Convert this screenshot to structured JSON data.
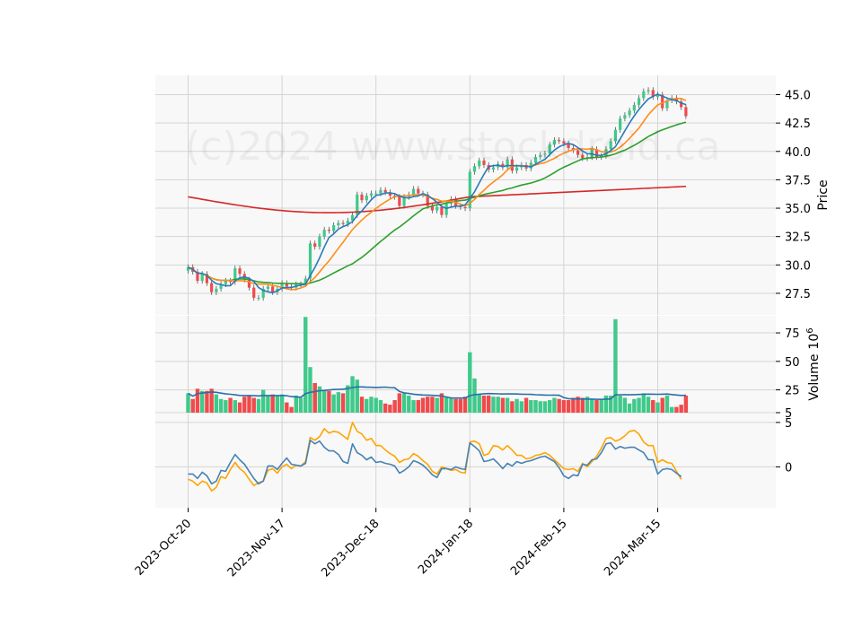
{
  "watermark": "(c)2024 www.stockdroid.ca",
  "colors": {
    "up": "#3fc98a",
    "down": "#f04a4a",
    "panel_bg": "#f8f8f8",
    "grid": "#d4d4d4",
    "ma_short": "#2a7ab8",
    "ma_medium": "#ff8c1a",
    "ma_long": "#2ca02c",
    "ma_xlong": "#d62728",
    "volume_ma": "#2a6fa8",
    "osc_fast": "#4682b4",
    "osc_slow": "#ffa500"
  },
  "chart_data": [
    {
      "type": "candlestick",
      "panel": "price",
      "ylabel": "Price",
      "ylim": [
        25.6,
        46.7
      ],
      "yticks": [
        27.5,
        30.0,
        32.5,
        35.0,
        37.5,
        40.0,
        42.5,
        45.0
      ],
      "ytick_labels": [
        "27.5",
        "30.0",
        "32.5",
        "35.0",
        "37.5",
        "40.0",
        "42.5",
        "45.0"
      ],
      "xticks": [
        0,
        20,
        40,
        60,
        80,
        100
      ],
      "xtick_labels": [
        "2023-Oct-20",
        "2023-Nov-17",
        "2023-Dec-18",
        "2024-Jan-18",
        "2024-Feb-15",
        "2024-Mar-15"
      ],
      "grid": true,
      "closes": [
        29.8,
        29.4,
        28.6,
        29.2,
        28.4,
        27.6,
        27.9,
        28.3,
        28.6,
        28.5,
        29.7,
        29.2,
        28.7,
        28.0,
        27.1,
        27.1,
        27.9,
        28.1,
        27.6,
        27.9,
        28.4,
        28.1,
        28.0,
        28.3,
        28.3,
        28.8,
        31.9,
        31.6,
        32.5,
        33.1,
        33.0,
        33.5,
        33.7,
        33.6,
        33.9,
        34.4,
        36.2,
        35.7,
        36.1,
        36.3,
        36.3,
        36.6,
        36.4,
        36.1,
        36.0,
        35.2,
        36.0,
        36.2,
        36.7,
        36.3,
        36.2,
        35.2,
        34.8,
        35.1,
        34.4,
        35.4,
        35.8,
        35.2,
        35.1,
        35.0,
        38.2,
        38.7,
        39.2,
        38.8,
        38.4,
        38.6,
        38.9,
        38.6,
        39.3,
        38.3,
        38.6,
        38.8,
        38.5,
        39.0,
        39.5,
        39.7,
        39.8,
        40.6,
        41.0,
        40.9,
        40.7,
        40.3,
        40.1,
        39.7,
        39.4,
        39.5,
        40.2,
        39.5,
        39.6,
        40.2,
        40.9,
        41.9,
        42.9,
        43.2,
        43.6,
        44.1,
        44.7,
        45.3,
        45.4,
        44.8,
        45.0,
        43.8,
        44.5,
        44.7,
        44.4,
        43.9,
        43.1
      ]
    },
    {
      "type": "bar",
      "panel": "volume",
      "ylabel": "Volume  10^6",
      "ylabel_main": "Volume",
      "ylabel_exp": "6",
      "ylim": [
        5,
        90
      ],
      "yticks": [
        5,
        25,
        50,
        75
      ],
      "ytick_labels": [
        "5",
        "25",
        "50",
        "75"
      ],
      "values": [
        22,
        17,
        26,
        24,
        24,
        26,
        21,
        17,
        16,
        18,
        16,
        14,
        19,
        20,
        18,
        17,
        25,
        20,
        21,
        20,
        21,
        14,
        10,
        20,
        18,
        89,
        45,
        31,
        28,
        25,
        24,
        21,
        23,
        22,
        29,
        37,
        34,
        19,
        17,
        19,
        18,
        16,
        13,
        12,
        16,
        22,
        22,
        20,
        16,
        16,
        18,
        19,
        19,
        18,
        22,
        19,
        18,
        17,
        17,
        19,
        58,
        35,
        21,
        20,
        20,
        19,
        19,
        18,
        18,
        15,
        17,
        15,
        18,
        16,
        16,
        15,
        15,
        16,
        18,
        17,
        16,
        16,
        18,
        19,
        18,
        19,
        17,
        16,
        16,
        20,
        20,
        87,
        20,
        18,
        13,
        17,
        18,
        22,
        19,
        16,
        14,
        18,
        20,
        10,
        10,
        12,
        20
      ]
    },
    {
      "type": "line",
      "panel": "oscillator",
      "ylim": [
        -4.6,
        6.0
      ],
      "yticks": [
        0,
        5
      ],
      "ytick_labels": [
        "0",
        "5"
      ],
      "series": [
        {
          "values": [
            -0.8,
            -0.8,
            -1.3,
            -0.6,
            -1.0,
            -1.9,
            -1.6,
            -0.4,
            -0.5,
            0.5,
            1.4,
            0.8,
            0.3,
            -0.5,
            -1.3,
            -1.9,
            -1.6,
            0.1,
            0.1,
            -0.3,
            0.4,
            1.0,
            0.3,
            0.2,
            0.1,
            0.4,
            3.0,
            2.6,
            2.9,
            2.2,
            1.8,
            1.8,
            1.4,
            0.6,
            0.4,
            2.6,
            1.6,
            1.3,
            0.8,
            1.1,
            0.5,
            0.6,
            0.4,
            0.3,
            0.1,
            -0.7,
            -0.4,
            0.0,
            0.7,
            0.5,
            0.2,
            -0.3,
            -0.9,
            -1.2,
            -0.2,
            -0.2,
            -0.3,
            0.0,
            -0.2,
            -0.3,
            2.7,
            2.3,
            1.8,
            0.6,
            0.7,
            0.9,
            0.4,
            -0.2,
            0.4,
            0.1,
            0.6,
            0.4,
            0.6,
            0.7,
            0.9,
            1.1,
            1.2,
            0.9,
            0.6,
            -0.1,
            -1.0,
            -1.3,
            -0.9,
            -1.0,
            0.3,
            0.2,
            0.8,
            0.9,
            1.6,
            2.6,
            2.7,
            2.0,
            2.3,
            2.1,
            2.2,
            2.2,
            1.9,
            1.6,
            0.8,
            0.8,
            -0.8,
            -0.3,
            -0.2,
            -0.3,
            -0.7,
            -1.1
          ]
        },
        {
          "values": [
            -1.4,
            -1.6,
            -2.1,
            -1.6,
            -1.8,
            -2.7,
            -2.3,
            -1.1,
            -1.3,
            -0.3,
            0.5,
            -0.2,
            -0.6,
            -1.4,
            -2.1,
            -1.8,
            -1.6,
            -0.4,
            -0.2,
            -0.7,
            0.0,
            0.3,
            -0.2,
            0.2,
            0.1,
            0.6,
            3.3,
            3.0,
            3.4,
            4.3,
            3.8,
            4.0,
            3.9,
            3.5,
            3.1,
            5.0,
            4.0,
            3.7,
            3.0,
            3.2,
            2.4,
            2.4,
            1.9,
            1.5,
            1.2,
            0.5,
            0.8,
            0.9,
            1.5,
            1.2,
            0.7,
            0.3,
            -0.5,
            -0.8,
            0.0,
            -0.2,
            -0.4,
            -0.3,
            -0.6,
            -0.7,
            2.8,
            2.9,
            2.6,
            1.3,
            1.5,
            2.4,
            2.3,
            1.9,
            2.4,
            1.9,
            1.3,
            1.3,
            0.9,
            1.0,
            1.3,
            1.4,
            1.6,
            1.3,
            0.8,
            0.3,
            -0.2,
            -0.3,
            -0.2,
            -0.5,
            0.4,
            0.0,
            0.6,
            1.2,
            2.1,
            3.2,
            3.3,
            2.9,
            3.1,
            3.5,
            4.0,
            4.1,
            3.7,
            2.8,
            2.4,
            2.4,
            0.5,
            0.8,
            0.5,
            0.4,
            -0.5,
            -1.4
          ]
        }
      ]
    }
  ]
}
